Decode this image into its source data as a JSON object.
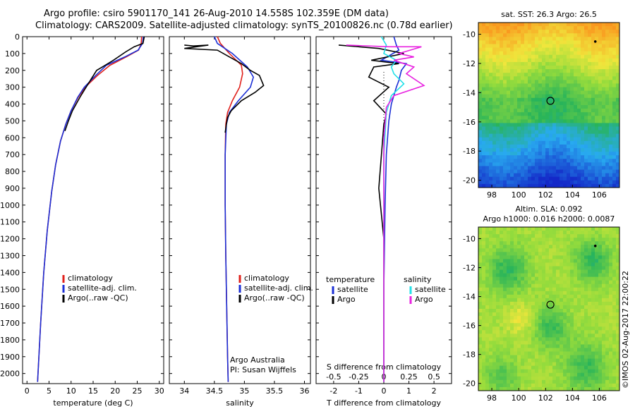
{
  "title": {
    "line1": "Argo profile: csiro 5901170_141 26-Aug-2010 14.558S 102.359E (DM data)",
    "line2": "Climatology: CARS2009. Satellite-adjusted climatology: synTS_20100826.nc (0.78d earlier)"
  },
  "colors": {
    "climatology": "#e0201b",
    "satellite": "#1b2fd6",
    "argo": "#000000",
    "sat_salinity": "#22e0e8",
    "argo_salinity": "#e822e0"
  },
  "chart_data": [
    {
      "type": "line",
      "id": "temperature",
      "xlabel": "temperature (deg C)",
      "ylabel": "",
      "xlim": [
        -1,
        31
      ],
      "ylim": [
        2060,
        0
      ],
      "xticks": [
        0,
        5,
        10,
        15,
        20,
        25,
        30
      ],
      "yticks": [
        0,
        100,
        200,
        300,
        400,
        500,
        600,
        700,
        800,
        900,
        1000,
        1100,
        1200,
        1300,
        1400,
        1500,
        1600,
        1700,
        1800,
        1900,
        2000
      ],
      "legend": [
        "climatology",
        "satellite-adj. clim.",
        "Argo(..raw -QC)"
      ],
      "legend_position": "lower-center",
      "series": [
        {
          "name": "climatology",
          "color": "climatology",
          "x": [
            26.0,
            25.9,
            25.3,
            22.5,
            18.8,
            16.0,
            13.2,
            11.6,
            10.0,
            8.8,
            7.6,
            6.5,
            5.6,
            4.6,
            3.8,
            3.1,
            2.6,
            2.4
          ],
          "y": [
            0,
            40,
            80,
            120,
            170,
            230,
            300,
            360,
            440,
            520,
            620,
            760,
            920,
            1150,
            1400,
            1700,
            1950,
            2050
          ]
        },
        {
          "name": "satellite-adj. clim.",
          "color": "satellite",
          "x": [
            26.4,
            26.2,
            25.2,
            22.2,
            18.0,
            15.6,
            13.0,
            11.5,
            10.0,
            8.8,
            7.6,
            6.5,
            5.6,
            4.6,
            3.8,
            3.1,
            2.6,
            2.4
          ],
          "y": [
            0,
            40,
            80,
            120,
            170,
            230,
            300,
            360,
            440,
            520,
            620,
            760,
            920,
            1150,
            1400,
            1700,
            1950,
            2050
          ]
        },
        {
          "name": "Argo(..raw -QC)",
          "color": "argo",
          "x": [
            26.6,
            26.3,
            24.3,
            22.4,
            19.6,
            17.4,
            15.8,
            13.4,
            12.0,
            10.3,
            9.4,
            8.6
          ],
          "y": [
            0,
            40,
            60,
            90,
            140,
            175,
            200,
            300,
            360,
            440,
            500,
            560
          ]
        }
      ]
    },
    {
      "type": "line",
      "id": "salinity",
      "xlabel": "salinity",
      "ylabel": "",
      "xlim": [
        33.75,
        36.1
      ],
      "ylim": [
        2060,
        0
      ],
      "xticks": [
        34,
        34.5,
        35,
        35.5,
        36
      ],
      "legend": [
        "climatology",
        "satellite-adj. clim.",
        "Argo(..raw -QC)"
      ],
      "legend_position": "lower-right",
      "annotation": [
        "Argo Australia",
        "PI: Susan Wijffels"
      ],
      "series": [
        {
          "name": "climatology",
          "color": "climatology",
          "x": [
            34.55,
            34.6,
            34.75,
            34.95,
            34.97,
            34.92,
            34.8,
            34.72,
            34.69,
            34.68,
            34.68,
            34.69,
            34.7,
            34.71,
            34.72,
            34.73
          ],
          "y": [
            0,
            40,
            100,
            170,
            220,
            300,
            380,
            450,
            520,
            700,
            1000,
            1300,
            1500,
            1700,
            1900,
            2050
          ]
        },
        {
          "name": "satellite-adj. clim.",
          "color": "satellite",
          "x": [
            34.5,
            34.55,
            34.8,
            35.05,
            35.15,
            35.1,
            34.9,
            34.75,
            34.7,
            34.68,
            34.68,
            34.69,
            34.7,
            34.71,
            34.72,
            34.73
          ],
          "y": [
            0,
            40,
            100,
            180,
            240,
            300,
            380,
            450,
            520,
            700,
            1000,
            1300,
            1500,
            1700,
            1900,
            2050
          ]
        },
        {
          "name": "Argo(..raw -QC)",
          "color": "argo",
          "x": [
            34.0,
            34.15,
            34.4,
            34.0,
            34.55,
            34.75,
            34.95,
            35.1,
            35.25,
            35.32,
            35.18,
            34.95,
            34.78,
            34.72,
            34.7,
            34.68
          ],
          "y": [
            50,
            55,
            50,
            70,
            80,
            120,
            160,
            200,
            230,
            290,
            330,
            380,
            440,
            480,
            520,
            570
          ]
        }
      ]
    },
    {
      "type": "line",
      "id": "difference",
      "xlabel": "T difference from climatology",
      "xlabel_top": "S difference from climatology",
      "xlim": [
        -2.7,
        2.7
      ],
      "ylim": [
        2060,
        0
      ],
      "xticks": [
        -2,
        -1,
        0,
        1,
        2
      ],
      "xticklabels": [
        "-2",
        "-1",
        "0",
        "1",
        "2"
      ],
      "sticks": [
        -0.5,
        -0.25,
        0,
        0.25,
        0.5
      ],
      "sticklabels": [
        "-0.5",
        "-0.25",
        "0",
        "0.25",
        "0.5"
      ],
      "legend": [
        "satellite",
        "Argo",
        "satellite",
        "Argo"
      ],
      "legend_titles": [
        "temperature",
        "salinity"
      ],
      "legend_position": "lower-center",
      "series": [
        {
          "name": "satellite",
          "color": "satellite",
          "x": [
            0.4,
            0.5,
            0.6,
            -0.1,
            0.9,
            0.7,
            0.6,
            0.5,
            0.3,
            0.2,
            0.1,
            0.05,
            0.0,
            0.0
          ],
          "y": [
            0,
            50,
            80,
            140,
            160,
            200,
            260,
            300,
            400,
            500,
            700,
            1000,
            1500,
            2050
          ]
        },
        {
          "name": "Argo",
          "color": "argo",
          "x": [
            -1.8,
            -0.2,
            0.8,
            -0.5,
            0.6,
            -0.4,
            -0.6,
            0.2,
            -0.4,
            0.1,
            0.0,
            -0.2,
            -0.1,
            0.0,
            0.0,
            0.0
          ],
          "y": [
            50,
            70,
            100,
            140,
            160,
            180,
            240,
            300,
            380,
            460,
            520,
            900,
            1050,
            1200,
            1500,
            2050
          ]
        },
        {
          "name": "satellite",
          "color": "sat_salinity",
          "x": [
            -0.1,
            0.1,
            0.0,
            0.5,
            0.3,
            0.4,
            0.8,
            0.3,
            0.1,
            0.0,
            0.0
          ],
          "y": [
            0,
            50,
            100,
            140,
            180,
            220,
            280,
            350,
            450,
            700,
            2050
          ]
        },
        {
          "name": "Argo",
          "color": "argo_salinity",
          "x": [
            -1.5,
            0.2,
            1.5,
            0.6,
            1.2,
            0.4,
            1.2,
            0.9,
            1.6,
            0.4,
            0.1,
            0.0,
            0.0
          ],
          "y": [
            50,
            60,
            60,
            100,
            120,
            140,
            180,
            220,
            290,
            350,
            420,
            600,
            2050
          ]
        }
      ]
    },
    {
      "type": "heatmap",
      "id": "sst-map",
      "title": "sat. SST: 26.3 Argo: 26.5",
      "xlim": [
        97,
        107.5
      ],
      "ylim": [
        -20.5,
        -9.2
      ],
      "xticks": [
        98,
        100,
        102,
        104,
        106
      ],
      "yticks": [
        -10,
        -12,
        -14,
        -16,
        -18,
        -20
      ],
      "markers": [
        {
          "lon": 102.36,
          "lat": -14.56,
          "kind": "profile"
        },
        {
          "lon": 105.7,
          "lat": -10.5,
          "kind": "island"
        }
      ]
    },
    {
      "type": "heatmap",
      "id": "sla-map",
      "title": "Altim. SLA: 0.092",
      "subtitle": "Argo h1000: 0.016 h2000: 0.0087",
      "xlim": [
        97,
        107.5
      ],
      "ylim": [
        -20.5,
        -9.2
      ],
      "xticks": [
        98,
        100,
        102,
        104,
        106
      ],
      "yticks": [
        -10,
        -12,
        -14,
        -16,
        -18,
        -20
      ],
      "markers": [
        {
          "lon": 102.36,
          "lat": -14.56,
          "kind": "profile"
        },
        {
          "lon": 105.7,
          "lat": -10.5,
          "kind": "island"
        }
      ]
    }
  ],
  "credit": "©IMOS 02-Aug-2017 22:00:22"
}
